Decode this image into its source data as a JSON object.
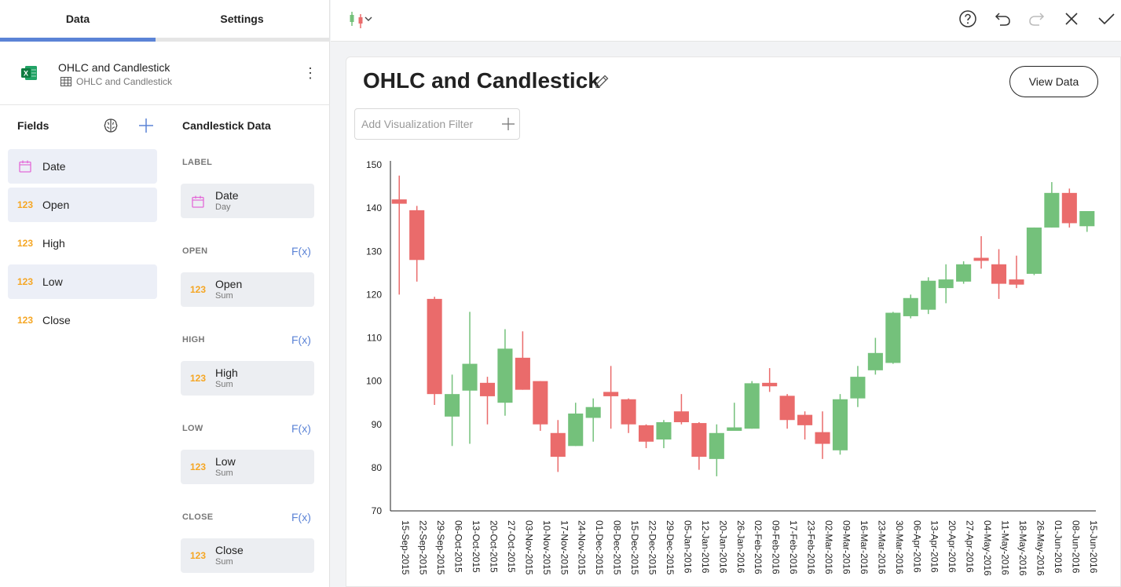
{
  "tabs": {
    "data": "Data",
    "settings": "Settings"
  },
  "source": {
    "title": "OHLC and Candlestick",
    "subtitle": "OHLC and Candlestick"
  },
  "fields": {
    "title": "Fields",
    "items": [
      {
        "icon": "calendar-icon",
        "label": "Date"
      },
      {
        "icon": "123",
        "label": "Open"
      },
      {
        "icon": "123",
        "label": "High"
      },
      {
        "icon": "123",
        "label": "Low"
      },
      {
        "icon": "123",
        "label": "Close"
      }
    ]
  },
  "candlestick": {
    "title": "Candlestick Data",
    "label_section": "LABEL",
    "open_section": "OPEN",
    "high_section": "HIGH",
    "low_section": "LOW",
    "close_section": "CLOSE",
    "fx": "F(x)",
    "slots": {
      "date": {
        "name": "Date",
        "sub": "Day"
      },
      "open": {
        "icon": "123",
        "name": "Open",
        "sub": "Sum"
      },
      "high": {
        "icon": "123",
        "name": "High",
        "sub": "Sum"
      },
      "low": {
        "icon": "123",
        "name": "Low",
        "sub": "Sum"
      },
      "close": {
        "icon": "123",
        "name": "Close",
        "sub": "Sum"
      }
    }
  },
  "toolbar": {
    "icons": [
      "candlestick-chart-icon",
      "help-icon",
      "undo-icon",
      "redo-icon",
      "close-icon",
      "check-icon"
    ]
  },
  "card": {
    "title": "OHLC and Candlestick",
    "view_data": "View Data",
    "filter_placeholder": "Add Visualization Filter"
  },
  "colors": {
    "up": "#74c17b",
    "down": "#ea6b6b",
    "accent": "#5b83d6",
    "number_icon": "#f5a623",
    "date_icon": "#e36ad8"
  },
  "chart_data": {
    "type": "candlestick",
    "ylim": [
      70,
      150
    ],
    "yticks": [
      70,
      80,
      90,
      100,
      110,
      120,
      130,
      140,
      150
    ],
    "categories": [
      "15-Sep-2015",
      "22-Sep-2015",
      "29-Sep-2015",
      "06-Oct-2015",
      "13-Oct-2015",
      "20-Oct-2015",
      "27-Oct-2015",
      "03-Nov-2015",
      "10-Nov-2015",
      "17-Nov-2015",
      "24-Nov-2015",
      "01-Dec-2015",
      "08-Dec-2015",
      "15-Dec-2015",
      "22-Dec-2015",
      "29-Dec-2015",
      "05-Jan-2016",
      "12-Jan-2016",
      "20-Jan-2016",
      "26-Jan-2016",
      "02-Feb-2016",
      "09-Feb-2016",
      "17-Feb-2016",
      "23-Feb-2016",
      "02-Mar-2016",
      "09-Mar-2016",
      "16-Mar-2016",
      "23-Mar-2016",
      "30-Mar-2016",
      "06-Apr-2016",
      "13-Apr-2016",
      "20-Apr-2016",
      "27-Apr-2016",
      "04-May-2016",
      "11-May-2016",
      "18-May-2016",
      "26-May-2016",
      "01-Jun-2016",
      "08-Jun-2016",
      "15-Jun-2016"
    ],
    "open": [
      142,
      139.5,
      119,
      91.8,
      97.8,
      99.6,
      95,
      105.4,
      100,
      88,
      85,
      91.5,
      97.5,
      95.8,
      89.8,
      86.5,
      93,
      90.3,
      82,
      88.5,
      89,
      99.6,
      96.6,
      92.2,
      88.2,
      84,
      96,
      102.5,
      104.2,
      115,
      116.5,
      121.5,
      123,
      128.5,
      127,
      123.5,
      124.8,
      135.5,
      143.5,
      135.8
    ],
    "high": [
      147.5,
      140.5,
      119.5,
      101.5,
      116,
      101,
      112,
      111.5,
      100,
      91,
      95,
      96,
      103.5,
      96,
      90,
      91,
      97,
      90.5,
      90,
      95,
      100,
      103,
      97,
      93,
      93,
      97,
      103.5,
      110,
      116,
      120,
      124,
      127,
      127.7,
      133.5,
      130.5,
      129,
      135.5,
      146,
      144.5,
      139
    ],
    "low": [
      120,
      123,
      94.5,
      85,
      85.5,
      90,
      92,
      98,
      88.5,
      79,
      85,
      86,
      89,
      88,
      84.5,
      84.5,
      90,
      79.5,
      78,
      88.5,
      89,
      97.5,
      89,
      86.5,
      82,
      83,
      94,
      101.5,
      104,
      114.5,
      115.5,
      118,
      122.5,
      126,
      119,
      121.5,
      124.5,
      135.5,
      135.5,
      134.5
    ],
    "close": [
      141,
      128,
      97,
      97,
      104,
      96.5,
      107.5,
      98,
      90,
      82.5,
      92.5,
      94,
      96.5,
      90,
      86,
      90.5,
      90.5,
      82.5,
      88,
      89.3,
      99.5,
      98.8,
      91,
      89.8,
      85.5,
      95.8,
      101,
      106.5,
      115.8,
      119.2,
      123.2,
      123.5,
      127,
      127.8,
      122.5,
      122.3,
      135.5,
      143.5,
      136.5,
      139.3
    ]
  }
}
